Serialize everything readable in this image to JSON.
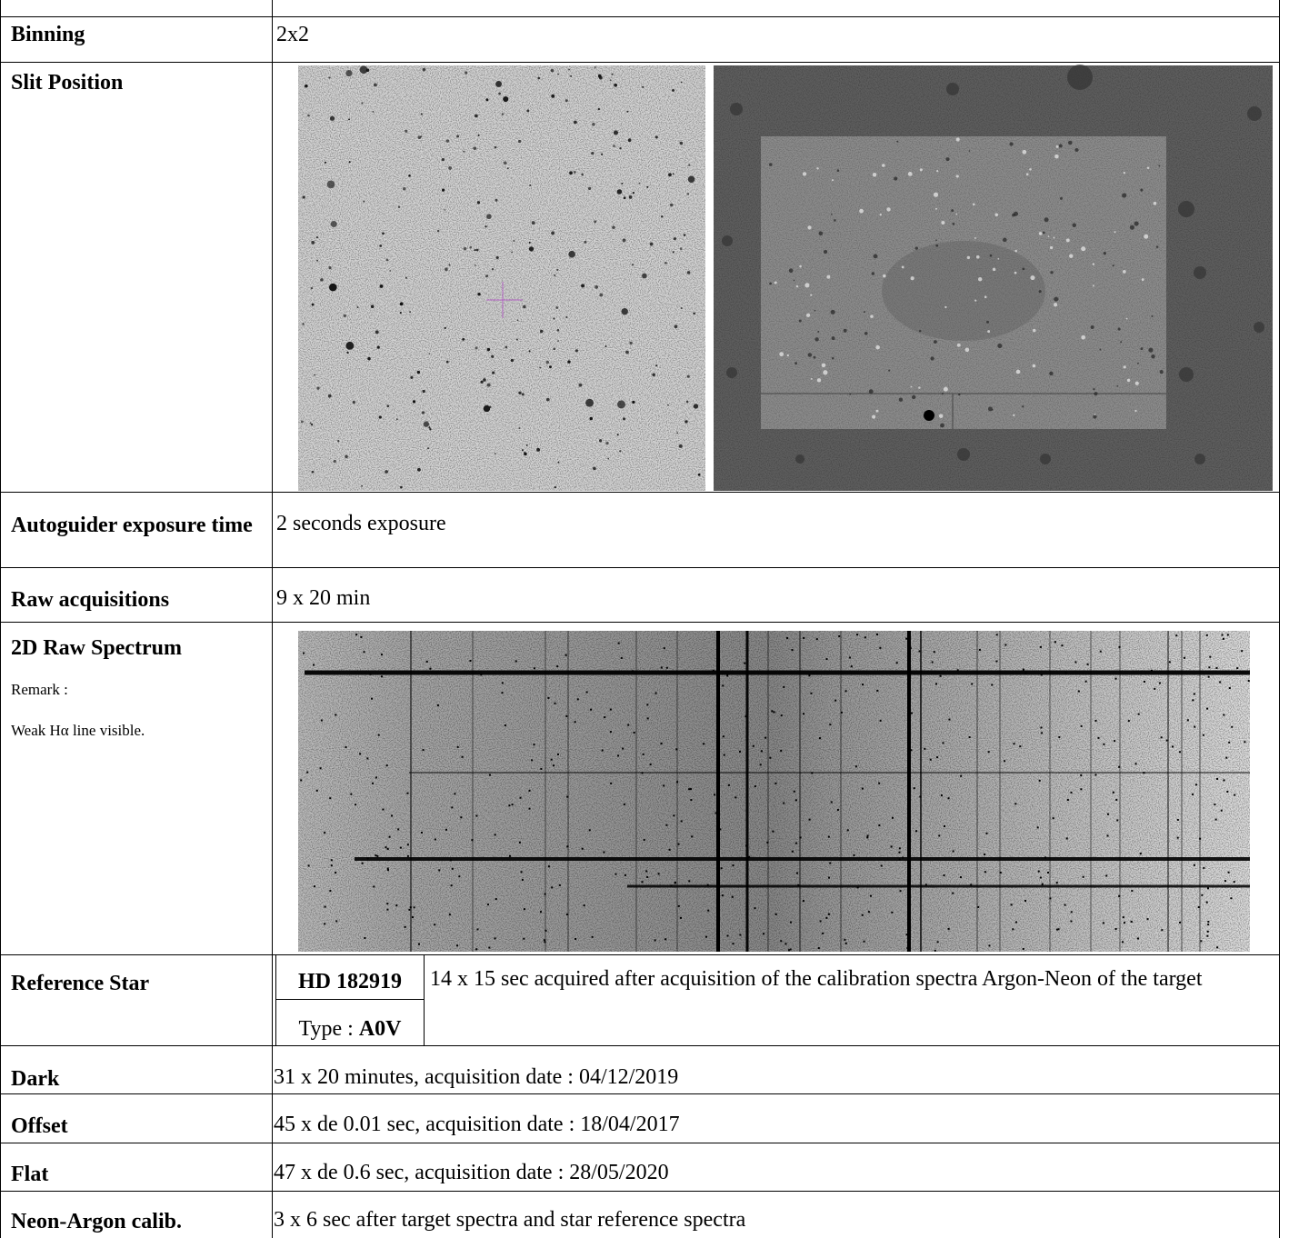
{
  "table": {
    "rows": [
      {
        "label": "Binning",
        "value": "2x2"
      },
      {
        "label": "Slit Position"
      },
      {
        "label": "Autoguider exposure time",
        "value": "2 seconds exposure"
      },
      {
        "label": "Raw acquisitions",
        "value": "9 x 20 min"
      },
      {
        "label": "2D Raw Spectrum",
        "remark": "Remark :",
        "note": "Weak Hα line visible."
      },
      {
        "label": "Reference Star",
        "star": "HD 182919",
        "type_prefix": "Type : ",
        "type": "A0V",
        "value": "14 x 15 sec acquired after acquisition of the calibration spectra Argon-Neon of the target"
      },
      {
        "label": "Dark",
        "value": "31 x 20 minutes, acquisition date : 04/12/2019"
      },
      {
        "label": "Offset",
        "value": "45 x de 0.01 sec, acquisition date : 18/04/2017"
      },
      {
        "label": "Flat",
        "value": "47 x de 0.6 sec, acquisition date : 28/05/2020"
      },
      {
        "label": "Neon-Argon calib.",
        "value": "3 x 6 sec after target spectra and star reference spectra"
      }
    ]
  }
}
